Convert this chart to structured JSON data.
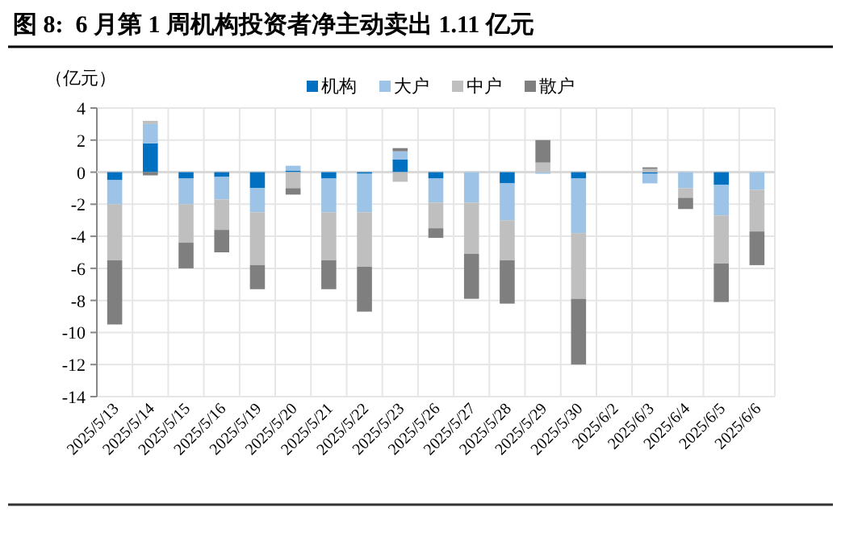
{
  "chart_data": {
    "type": "bar",
    "stacked": true,
    "title": "图 8:  6 月第 1 周机构投资者净主动卖出 1.11 亿元",
    "ylabel": "（亿元）",
    "categories": [
      "2025/5/13",
      "2025/5/14",
      "2025/5/15",
      "2025/5/16",
      "2025/5/19",
      "2025/5/20",
      "2025/5/21",
      "2025/5/22",
      "2025/5/23",
      "2025/5/26",
      "2025/5/27",
      "2025/5/28",
      "2025/5/29",
      "2025/5/30",
      "2025/6/2",
      "2025/6/3",
      "2025/6/4",
      "2025/6/5",
      "2025/6/6"
    ],
    "series": [
      {
        "name": "机构",
        "color": "#0070c0",
        "values": [
          -0.5,
          1.8,
          -0.4,
          -0.3,
          -1.0,
          0.1,
          -0.4,
          -0.1,
          0.8,
          -0.4,
          0,
          -0.7,
          0,
          -0.4,
          0,
          -0.1,
          0,
          -0.8,
          0
        ]
      },
      {
        "name": "大户",
        "color": "#9dc3e6",
        "values": [
          -1.5,
          1.2,
          -1.6,
          -1.4,
          -1.5,
          0.3,
          -2.1,
          -2.4,
          0.5,
          -1.5,
          -1.9,
          -2.3,
          -0.1,
          -3.4,
          0,
          -0.6,
          -1.0,
          -1.9,
          -1.1
        ]
      },
      {
        "name": "中户",
        "color": "#bfbfbf",
        "values": [
          -3.5,
          0.2,
          -2.4,
          -1.9,
          -3.3,
          -1.0,
          -3.0,
          -3.4,
          -0.6,
          -1.6,
          -3.2,
          -2.5,
          0.6,
          -4.1,
          0,
          0.2,
          -0.6,
          -3.0,
          -2.6
        ]
      },
      {
        "name": "散户",
        "color": "#7f7f7f",
        "values": [
          -4.0,
          -0.2,
          -1.6,
          -1.4,
          -1.5,
          -0.4,
          -1.8,
          -2.8,
          0.2,
          -0.6,
          -2.8,
          -2.7,
          1.4,
          -4.1,
          0,
          0.1,
          -0.7,
          -2.4,
          -2.1
        ]
      }
    ],
    "ylim": [
      -14,
      4
    ],
    "yticks": [
      -14,
      -12,
      -10,
      -8,
      -6,
      -4,
      -2,
      0,
      2,
      4
    ],
    "grid": true,
    "legend": "top"
  }
}
